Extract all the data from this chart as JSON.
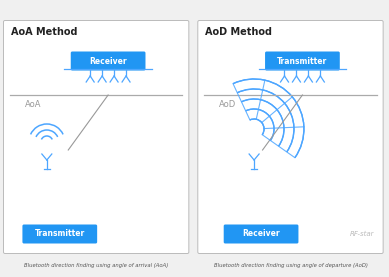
{
  "bg_color": "#f0f0f0",
  "panel_bg": "#ffffff",
  "blue_box": "#2196F3",
  "blue_line": "#4da6ff",
  "gray_line": "#aaaaaa",
  "angle_line": "#999999",
  "text_dark": "#222222",
  "text_gray": "#999999",
  "caption_color": "#555555",
  "left_title": "AoA Method",
  "right_title": "AoD Method",
  "left_receiver_label": "Receiver",
  "left_transmitter_label": "Transmitter",
  "right_transmitter_label": "Transmitter",
  "right_receiver_label": "Receiver",
  "left_angle_label": "AoA",
  "right_angle_label": "AoD",
  "left_caption": "Bluetooth direction finding using angle of arrival (AoA)",
  "right_caption": "Bluetooth direction finding using angle of departure (AoD)",
  "rfstar_text": "RF-star"
}
